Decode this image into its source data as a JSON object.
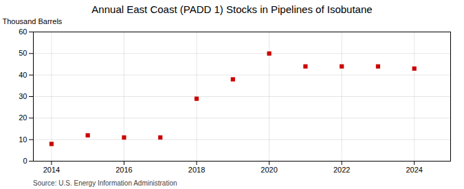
{
  "chart_data": {
    "type": "scatter",
    "title": "Annual East Coast (PADD 1) Stocks in Pipelines of Isobutane",
    "ylabel": "Thousand Barrels",
    "source": "Source: U.S. Energy Information Administration",
    "x": [
      2014,
      2015,
      2016,
      2017,
      2018,
      2019,
      2020,
      2021,
      2022,
      2023,
      2024
    ],
    "values": [
      8,
      12,
      11,
      11,
      29,
      38,
      50,
      44,
      44,
      44,
      43
    ],
    "color": "#cc0000",
    "marker": "square",
    "xlim": [
      2013.5,
      2025.0
    ],
    "ylim": [
      0,
      60
    ],
    "xticks": [
      2014,
      2016,
      2018,
      2020,
      2022,
      2024
    ],
    "yticks": [
      0,
      10,
      20,
      30,
      40,
      50,
      60
    ],
    "grid": true
  }
}
